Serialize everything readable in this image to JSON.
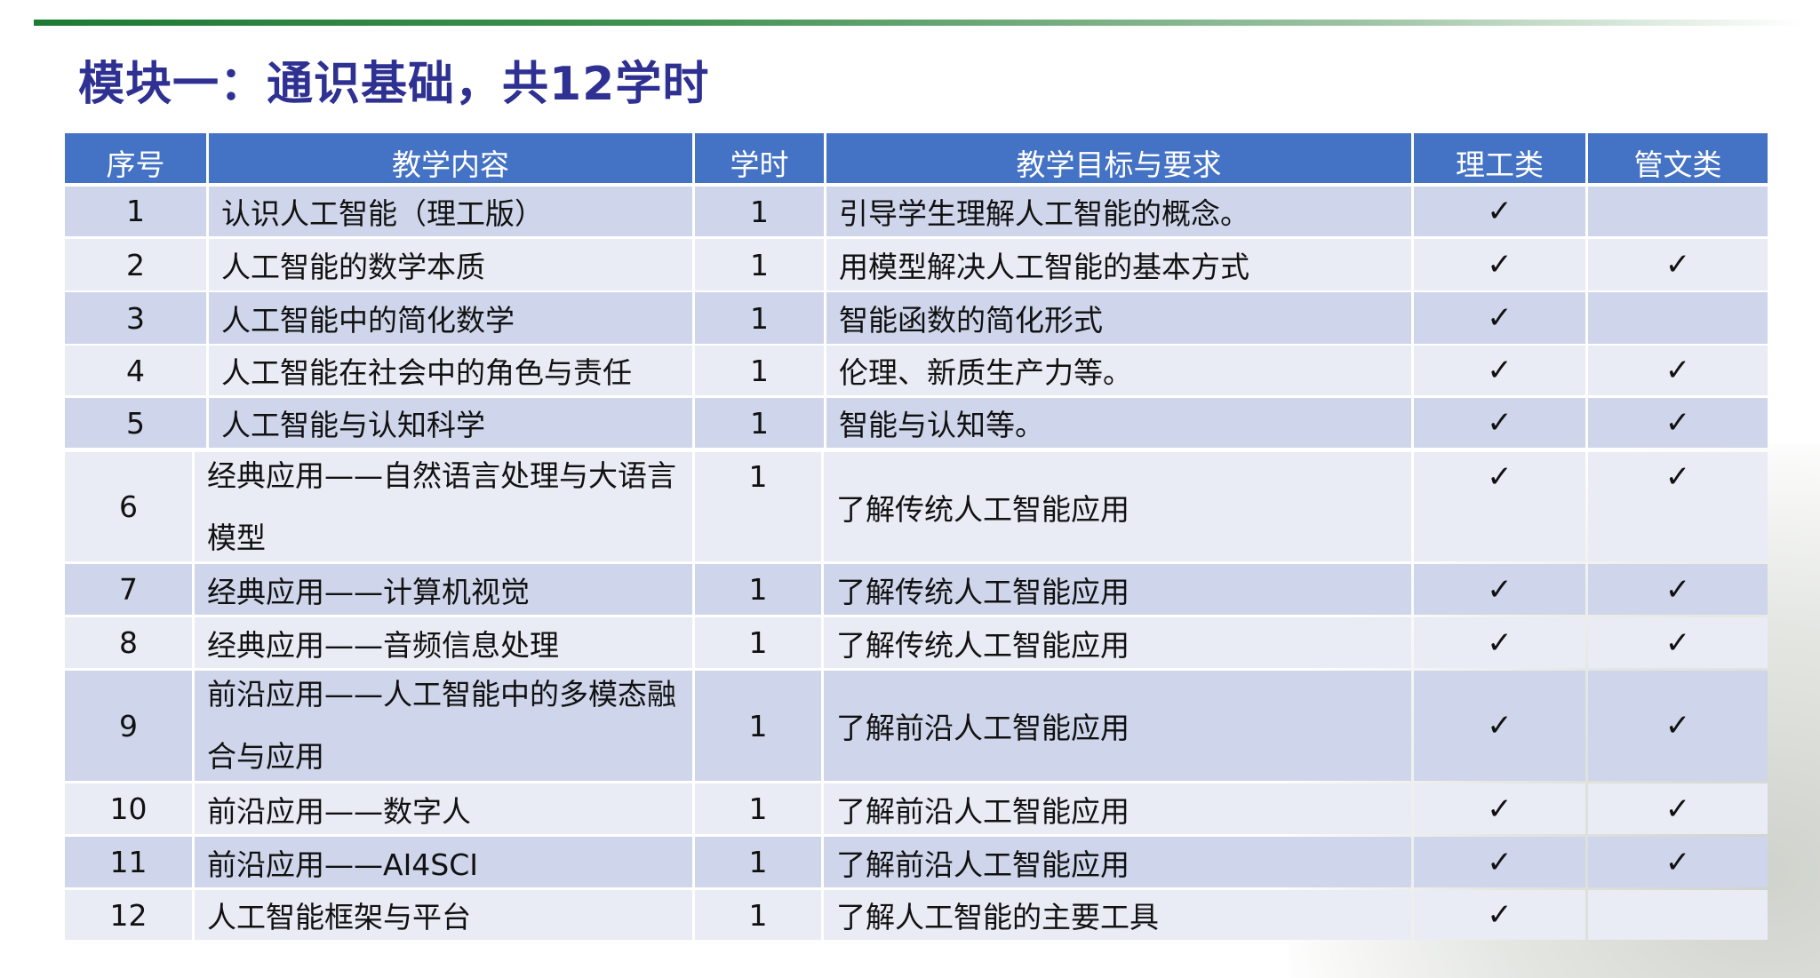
{
  "title": "模块一：通识基础，共12学时",
  "colors": {
    "title": "#2e3192",
    "header_bg": "#4472c4",
    "row_odd": "#cfd5ea",
    "row_even": "#e9ebf5",
    "accent_line": "#1d7a33"
  },
  "table": {
    "headers": [
      "序号",
      "教学内容",
      "学时",
      "教学目标与要求",
      "理工类",
      "管文类"
    ],
    "check_symbol": "✓",
    "rows": [
      {
        "no": "1",
        "content": "认识人工智能（理工版）",
        "hours": "1",
        "goal": "引导学生理解人工智能的概念。",
        "sci": true,
        "arts": false
      },
      {
        "no": "2",
        "content": "人工智能的数学本质",
        "hours": "1",
        "goal": "用模型解决人工智能的基本方式",
        "sci": true,
        "arts": true
      },
      {
        "no": "3",
        "content": "人工智能中的简化数学",
        "hours": "1",
        "goal": "智能函数的简化形式",
        "sci": true,
        "arts": false
      },
      {
        "no": "4",
        "content": "人工智能在社会中的角色与责任",
        "hours": "1",
        "goal": "伦理、新质生产力等。",
        "sci": true,
        "arts": true
      },
      {
        "no": "5",
        "content": "人工智能与认知科学",
        "hours": "1",
        "goal": "智能与认知等。",
        "sci": true,
        "arts": true
      },
      {
        "no": "6",
        "content": "经典应用——自然语言处理与大语言模型",
        "hours": "1",
        "goal": "了解传统人工智能应用",
        "sci": true,
        "arts": true
      },
      {
        "no": "7",
        "content": "经典应用——计算机视觉",
        "hours": "1",
        "goal": "了解传统人工智能应用",
        "sci": true,
        "arts": true
      },
      {
        "no": "8",
        "content": "经典应用——音频信息处理",
        "hours": "1",
        "goal": "了解传统人工智能应用",
        "sci": true,
        "arts": true
      },
      {
        "no": "9",
        "content": "前沿应用——人工智能中的多模态融合与应用",
        "hours": "1",
        "goal": "了解前沿人工智能应用",
        "sci": true,
        "arts": true
      },
      {
        "no": "10",
        "content": "前沿应用——数字人",
        "hours": "1",
        "goal": "了解前沿人工智能应用",
        "sci": true,
        "arts": true
      },
      {
        "no": "11",
        "content": "前沿应用——AI4SCI",
        "hours": "1",
        "goal": "了解前沿人工智能应用",
        "sci": true,
        "arts": true
      },
      {
        "no": "12",
        "content": "人工智能框架与平台",
        "hours": "1",
        "goal": "了解人工智能的主要工具",
        "sci": true,
        "arts": false
      }
    ]
  }
}
